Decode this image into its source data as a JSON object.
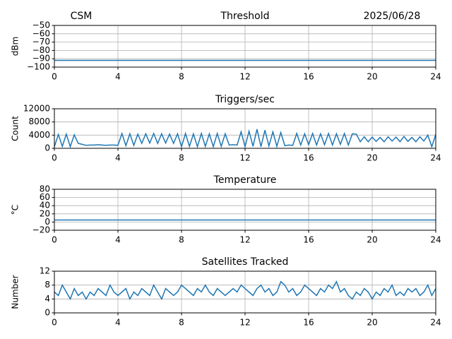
{
  "chart_data": [
    {
      "type": "line",
      "title_left": "CSM",
      "title": "Threshold",
      "title_right": "2025/06/28",
      "ylabel": "dBm",
      "x": [
        0,
        24
      ],
      "series": [
        {
          "color": "#1f77b4",
          "values": [
            -92,
            -92
          ]
        }
      ],
      "xlim": [
        0,
        24
      ],
      "xticks": [
        0,
        4,
        8,
        12,
        16,
        20,
        24
      ],
      "ylim": [
        -100,
        -50
      ],
      "yticks": [
        {
          "value": -100,
          "label": "−100"
        },
        {
          "value": -90,
          "label": "−90"
        },
        {
          "value": -80,
          "label": "−80"
        },
        {
          "value": -70,
          "label": "−70"
        },
        {
          "value": -60,
          "label": "−60"
        },
        {
          "value": -50,
          "label": "−50"
        }
      ],
      "grid": true
    },
    {
      "type": "line",
      "title": "Triggers/sec",
      "ylabel": "Count",
      "x": [
        0,
        0.25,
        0.5,
        0.75,
        1,
        1.25,
        1.5,
        1.75,
        2,
        2.25,
        2.5,
        2.75,
        3,
        3.25,
        3.5,
        3.75,
        4,
        4.25,
        4.5,
        4.75,
        5,
        5.25,
        5.5,
        5.75,
        6,
        6.25,
        6.5,
        6.75,
        7,
        7.25,
        7.5,
        7.75,
        8,
        8.25,
        8.5,
        8.75,
        9,
        9.25,
        9.5,
        9.75,
        10,
        10.25,
        10.5,
        10.75,
        11,
        11.25,
        11.5,
        11.75,
        12,
        12.25,
        12.5,
        12.75,
        13,
        13.25,
        13.5,
        13.75,
        14,
        14.25,
        14.5,
        14.75,
        15,
        15.25,
        15.5,
        15.75,
        16,
        16.25,
        16.5,
        16.75,
        17,
        17.25,
        17.5,
        17.75,
        18,
        18.25,
        18.5,
        18.75,
        19,
        19.25,
        19.5,
        19.75,
        20,
        20.25,
        20.5,
        20.75,
        21,
        21.25,
        21.5,
        21.75,
        22,
        22.25,
        22.5,
        22.75,
        23,
        23.25,
        23.5,
        23.75,
        24
      ],
      "series": [
        {
          "color": "#1f77b4",
          "values": [
            500,
            4200,
            600,
            4300,
            500,
            4100,
            1500,
            1200,
            900,
            1000,
            1000,
            1100,
            1000,
            900,
            1000,
            1000,
            900,
            4500,
            800,
            4400,
            900,
            4300,
            1500,
            4400,
            1600,
            4500,
            1500,
            4400,
            1600,
            4300,
            1500,
            4400,
            500,
            4500,
            600,
            4400,
            500,
            4500,
            600,
            4400,
            500,
            4500,
            600,
            4400,
            1000,
            1100,
            1000,
            5000,
            500,
            5200,
            600,
            5800,
            500,
            5500,
            700,
            5000,
            600,
            4800,
            800,
            1000,
            900,
            4500,
            1000,
            4400,
            1100,
            4500,
            1000,
            4400,
            1100,
            4500,
            1000,
            4400,
            1200,
            4500,
            1000,
            4400,
            4300,
            2000,
            3500,
            2000,
            3400,
            2100,
            3300,
            2000,
            3500,
            2200,
            3400,
            2000,
            3600,
            2100,
            3300,
            2000,
            3500,
            2200,
            4000,
            500,
            4200
          ]
        }
      ],
      "xlim": [
        0,
        24
      ],
      "xticks": [
        0,
        4,
        8,
        12,
        16,
        20,
        24
      ],
      "ylim": [
        0,
        12000
      ],
      "yticks": [
        0,
        4000,
        8000,
        12000
      ],
      "grid": true
    },
    {
      "type": "line",
      "title": "Temperature",
      "ylabel": "°C",
      "x": [
        0,
        24
      ],
      "series": [
        {
          "color": "#1f77b4",
          "values": [
            5,
            5
          ]
        }
      ],
      "xlim": [
        0,
        24
      ],
      "xticks": [
        0,
        4,
        8,
        12,
        16,
        20,
        24
      ],
      "ylim": [
        -20,
        80
      ],
      "yticks": [
        {
          "value": -20,
          "label": "−20"
        },
        0,
        20,
        40,
        60,
        80
      ],
      "grid": true
    },
    {
      "type": "line",
      "title": "Satellites Tracked",
      "ylabel": "Number",
      "x": [
        0,
        0.25,
        0.5,
        0.75,
        1,
        1.25,
        1.5,
        1.75,
        2,
        2.25,
        2.5,
        2.75,
        3,
        3.25,
        3.5,
        3.75,
        4,
        4.25,
        4.5,
        4.75,
        5,
        5.25,
        5.5,
        5.75,
        6,
        6.25,
        6.5,
        6.75,
        7,
        7.25,
        7.5,
        7.75,
        8,
        8.25,
        8.5,
        8.75,
        9,
        9.25,
        9.5,
        9.75,
        10,
        10.25,
        10.5,
        10.75,
        11,
        11.25,
        11.5,
        11.75,
        12,
        12.25,
        12.5,
        12.75,
        13,
        13.25,
        13.5,
        13.75,
        14,
        14.25,
        14.5,
        14.75,
        15,
        15.25,
        15.5,
        15.75,
        16,
        16.25,
        16.5,
        16.75,
        17,
        17.25,
        17.5,
        17.75,
        18,
        18.25,
        18.5,
        18.75,
        19,
        19.25,
        19.5,
        19.75,
        20,
        20.25,
        20.5,
        20.75,
        21,
        21.25,
        21.5,
        21.75,
        22,
        22.25,
        22.5,
        22.75,
        23,
        23.25,
        23.5,
        23.75,
        24
      ],
      "series": [
        {
          "color": "#1f77b4",
          "values": [
            6,
            5,
            8,
            6,
            4,
            7,
            5,
            6,
            4,
            6,
            5,
            7,
            6,
            5,
            8,
            6,
            5,
            6,
            7,
            4,
            6,
            5,
            7,
            6,
            5,
            8,
            6,
            4,
            7,
            6,
            5,
            6,
            8,
            7,
            6,
            5,
            7,
            6,
            8,
            6,
            5,
            7,
            6,
            5,
            6,
            7,
            6,
            8,
            7,
            6,
            5,
            7,
            8,
            6,
            7,
            5,
            6,
            9,
            8,
            6,
            7,
            5,
            6,
            8,
            7,
            6,
            5,
            7,
            6,
            8,
            7,
            9,
            6,
            7,
            5,
            4,
            6,
            5,
            7,
            6,
            4,
            6,
            5,
            7,
            6,
            8,
            5,
            6,
            5,
            7,
            6,
            7,
            5,
            6,
            8,
            5,
            7
          ]
        }
      ],
      "xlim": [
        0,
        24
      ],
      "xticks": [
        0,
        4,
        8,
        12,
        16,
        20,
        24
      ],
      "ylim": [
        0,
        12
      ],
      "yticks": [
        0,
        4,
        8,
        12
      ],
      "grid": true
    }
  ]
}
